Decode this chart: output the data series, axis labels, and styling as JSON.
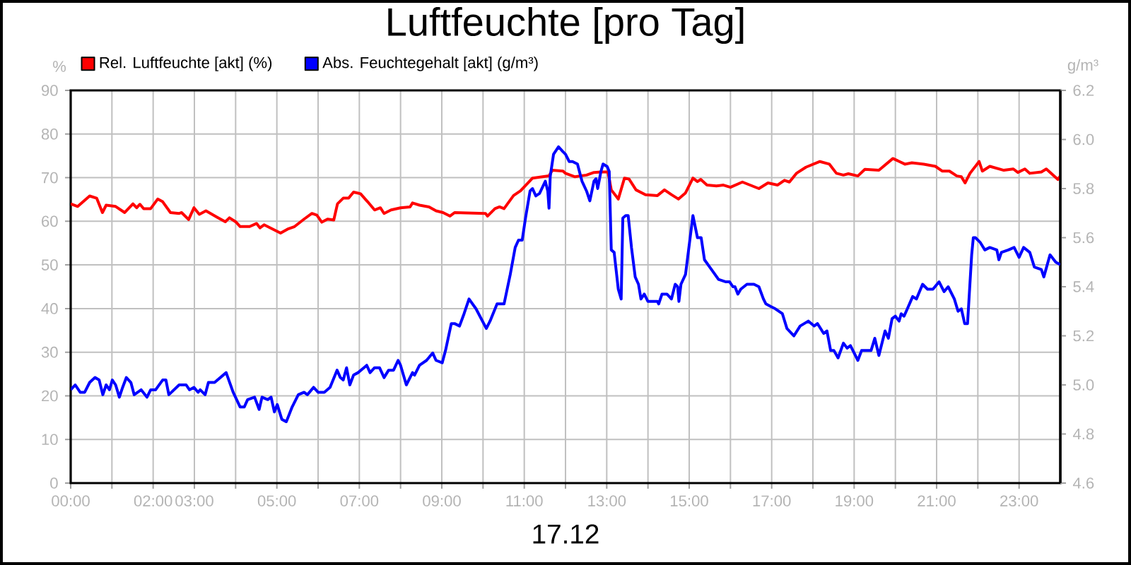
{
  "chart_data": {
    "type": "line",
    "title": "Luftfeuchte [pro Tag]",
    "xlabel": "17.12",
    "ylabel": "%",
    "y2label": "g/m³",
    "xlim": [
      0,
      24
    ],
    "xticks": [
      {
        "value": 0,
        "label": "00:00"
      },
      {
        "value": 1,
        "label": null
      },
      {
        "value": 2,
        "label": "02:00"
      },
      {
        "value": 3,
        "label": "03:00"
      },
      {
        "value": 4,
        "label": null
      },
      {
        "value": 5,
        "label": "05:00"
      },
      {
        "value": 6,
        "label": null
      },
      {
        "value": 7,
        "label": "07:00"
      },
      {
        "value": 8,
        "label": null
      },
      {
        "value": 9,
        "label": "09:00"
      },
      {
        "value": 10,
        "label": null
      },
      {
        "value": 11,
        "label": "11:00"
      },
      {
        "value": 12,
        "label": null
      },
      {
        "value": 13,
        "label": "13:00"
      },
      {
        "value": 14,
        "label": null
      },
      {
        "value": 15,
        "label": "15:00"
      },
      {
        "value": 16,
        "label": null
      },
      {
        "value": 17,
        "label": "17:00"
      },
      {
        "value": 18,
        "label": null
      },
      {
        "value": 19,
        "label": "19:00"
      },
      {
        "value": 20,
        "label": null
      },
      {
        "value": 21,
        "label": "21:00"
      },
      {
        "value": 22,
        "label": null
      },
      {
        "value": 23,
        "label": "23:00"
      }
    ],
    "ylim": [
      0,
      90
    ],
    "yticks": [
      0,
      10,
      20,
      30,
      40,
      50,
      60,
      70,
      80,
      90
    ],
    "y2lim": [
      4.6,
      6.2
    ],
    "y2ticks": [
      4.6,
      4.8,
      {
        "value": 5.0,
        "label": "5.0"
      },
      5.2,
      5.4,
      5.6,
      5.8,
      {
        "value": 6.0,
        "label": "6.0"
      },
      6.2
    ],
    "grid": true,
    "legend": "top left",
    "series": [
      {
        "name": "Rel. Luftfeuchte [akt] (%)",
        "color": "#ff0000",
        "x": [
          0,
          0.17,
          0.46,
          0.63,
          0.77,
          0.86,
          1.09,
          1.31,
          1.51,
          1.6,
          1.68,
          1.77,
          1.94,
          2.11,
          2.23,
          2.42,
          2.63,
          2.69,
          2.86,
          2.99,
          3.12,
          3.28,
          3.54,
          3.75,
          3.85,
          4.0,
          4.11,
          4.34,
          4.51,
          4.59,
          4.69,
          4.86,
          5.09,
          5.26,
          5.43,
          5.66,
          5.85,
          5.97,
          6.09,
          6.23,
          6.38,
          6.47,
          6.61,
          6.74,
          6.86,
          7.03,
          7.2,
          7.37,
          7.51,
          7.6,
          7.77,
          8.0,
          8.23,
          8.29,
          8.46,
          8.69,
          8.86,
          9.03,
          9.2,
          9.31,
          9.6,
          10.06,
          10.11,
          10.29,
          10.4,
          10.51,
          10.74,
          10.91,
          11.2,
          11.6,
          11.68,
          11.94,
          12.0,
          12.23,
          12.51,
          12.69,
          12.86,
          13.03,
          13.11,
          13.28,
          13.43,
          13.54,
          13.71,
          13.94,
          14.23,
          14.4,
          14.57,
          14.74,
          14.91,
          15.09,
          15.2,
          15.28,
          15.43,
          15.66,
          15.83,
          16.0,
          16.29,
          16.69,
          16.91,
          17.14,
          17.31,
          17.43,
          17.6,
          17.83,
          18.17,
          18.4,
          18.57,
          18.74,
          18.86,
          19.09,
          19.26,
          19.6,
          19.94,
          20.23,
          20.4,
          20.69,
          20.97,
          21.14,
          21.31,
          21.49,
          21.6,
          21.69,
          21.81,
          22.03,
          22.11,
          22.29,
          22.63,
          22.86,
          22.97,
          23.14,
          23.26,
          23.54,
          23.66,
          23.94,
          24.0
        ],
        "values": [
          64.0,
          63.4,
          65.8,
          65.3,
          62.0,
          63.7,
          63.4,
          62.0,
          64.0,
          63.1,
          63.9,
          62.9,
          62.9,
          65.1,
          64.5,
          62.0,
          61.8,
          62.0,
          60.4,
          63.1,
          61.6,
          62.4,
          61.0,
          59.9,
          60.8,
          59.9,
          58.8,
          58.8,
          59.5,
          58.5,
          59.2,
          58.4,
          57.3,
          58.2,
          58.8,
          60.5,
          61.8,
          61.4,
          59.8,
          60.5,
          60.3,
          64.0,
          65.3,
          65.3,
          66.7,
          66.3,
          64.5,
          62.6,
          63.1,
          61.8,
          62.6,
          63.1,
          63.3,
          64.2,
          63.7,
          63.3,
          62.4,
          62.0,
          61.2,
          62.0,
          61.9,
          61.8,
          61.2,
          62.9,
          63.3,
          62.9,
          65.9,
          67.0,
          69.9,
          70.4,
          71.7,
          71.5,
          71.0,
          70.2,
          70.6,
          71.2,
          71.3,
          71.3,
          67.2,
          65.1,
          69.9,
          69.7,
          67.2,
          66.1,
          65.9,
          67.2,
          66.1,
          65.1,
          66.5,
          69.9,
          69.1,
          69.6,
          68.3,
          68.1,
          68.3,
          67.8,
          69.0,
          67.5,
          68.8,
          68.3,
          69.4,
          69.0,
          71.0,
          72.4,
          73.7,
          73.1,
          71.0,
          70.6,
          70.9,
          70.4,
          71.9,
          71.7,
          74.4,
          73.1,
          73.4,
          73.1,
          72.6,
          71.5,
          71.5,
          70.4,
          70.2,
          68.8,
          71.0,
          73.7,
          71.5,
          72.6,
          71.7,
          72.0,
          71.2,
          72.0,
          71.0,
          71.3,
          72.0,
          69.6,
          70.4
        ]
      },
      {
        "name": "Abs. Feuchtegehalt [akt] (g/m³)",
        "color": "#0000ff",
        "axis": "y2",
        "x": [
          0,
          0.11,
          0.23,
          0.34,
          0.46,
          0.59,
          0.69,
          0.78,
          0.86,
          0.94,
          1.01,
          1.09,
          1.18,
          1.26,
          1.35,
          1.46,
          1.54,
          1.71,
          1.85,
          1.94,
          2.06,
          2.23,
          2.31,
          2.38,
          2.63,
          2.8,
          2.88,
          2.99,
          3.09,
          3.14,
          3.26,
          3.34,
          3.49,
          3.77,
          3.94,
          4.11,
          4.21,
          4.29,
          4.46,
          4.57,
          4.64,
          4.78,
          4.86,
          4.94,
          5.01,
          5.12,
          5.23,
          5.37,
          5.52,
          5.66,
          5.74,
          5.89,
          6.0,
          6.15,
          6.29,
          6.46,
          6.54,
          6.61,
          6.69,
          6.77,
          6.86,
          6.97,
          7.11,
          7.18,
          7.26,
          7.37,
          7.49,
          7.6,
          7.71,
          7.83,
          7.94,
          8.0,
          8.14,
          8.29,
          8.34,
          8.46,
          8.63,
          8.78,
          8.86,
          9.01,
          9.09,
          9.23,
          9.31,
          9.43,
          9.54,
          9.66,
          9.83,
          10.08,
          10.17,
          10.34,
          10.51,
          10.66,
          10.78,
          10.86,
          10.95,
          11.03,
          11.14,
          11.2,
          11.28,
          11.37,
          11.51,
          11.57,
          11.6,
          11.63,
          11.71,
          11.83,
          11.94,
          12.0,
          12.09,
          12.17,
          12.29,
          12.4,
          12.51,
          12.59,
          12.69,
          12.74,
          12.78,
          12.86,
          12.91,
          13.01,
          13.06,
          13.11,
          13.18,
          13.28,
          13.35,
          13.39,
          13.46,
          13.52,
          13.6,
          13.69,
          13.77,
          13.83,
          13.91,
          14.0,
          14.23,
          14.26,
          14.34,
          14.46,
          14.57,
          14.66,
          14.72,
          14.75,
          14.8,
          14.91,
          15.09,
          15.2,
          15.29,
          15.37,
          15.54,
          15.71,
          15.89,
          15.98,
          16.06,
          16.11,
          16.18,
          16.25,
          16.4,
          16.57,
          16.69,
          16.8,
          16.86,
          16.97,
          17.09,
          17.26,
          17.37,
          17.54,
          17.69,
          17.89,
          18.03,
          18.11,
          18.26,
          18.34,
          18.43,
          18.51,
          18.61,
          18.74,
          18.83,
          18.91,
          19.09,
          19.18,
          19.41,
          19.5,
          19.6,
          19.75,
          19.83,
          19.92,
          20.0,
          20.09,
          20.14,
          20.21,
          20.29,
          20.42,
          20.51,
          20.66,
          20.78,
          20.91,
          21.06,
          21.18,
          21.28,
          21.43,
          21.52,
          21.6,
          21.68,
          21.75,
          21.85,
          21.89,
          21.94,
          22.06,
          22.17,
          22.29,
          22.46,
          22.51,
          22.57,
          22.74,
          22.88,
          23.0,
          23.11,
          23.26,
          23.37,
          23.54,
          23.6,
          23.75,
          23.89,
          24.0
        ],
        "values": [
          4.98,
          5.0,
          4.97,
          4.97,
          5.01,
          5.03,
          5.02,
          4.96,
          5.0,
          4.98,
          5.02,
          5.0,
          4.95,
          4.99,
          5.03,
          5.01,
          4.96,
          4.98,
          4.95,
          4.98,
          4.98,
          5.02,
          5.02,
          4.96,
          5.0,
          5.0,
          4.98,
          4.99,
          4.97,
          4.98,
          4.96,
          5.01,
          5.01,
          5.05,
          4.97,
          4.91,
          4.91,
          4.94,
          4.95,
          4.9,
          4.95,
          4.94,
          4.95,
          4.89,
          4.92,
          4.86,
          4.85,
          4.91,
          4.96,
          4.97,
          4.96,
          4.99,
          4.97,
          4.97,
          4.99,
          5.06,
          5.03,
          5.02,
          5.07,
          5.0,
          5.04,
          5.05,
          5.07,
          5.08,
          5.05,
          5.07,
          5.07,
          5.03,
          5.06,
          5.06,
          5.1,
          5.08,
          5.0,
          5.05,
          5.04,
          5.08,
          5.1,
          5.13,
          5.1,
          5.09,
          5.14,
          5.25,
          5.25,
          5.24,
          5.29,
          5.35,
          5.31,
          5.23,
          5.26,
          5.33,
          5.33,
          5.45,
          5.56,
          5.59,
          5.59,
          5.68,
          5.79,
          5.8,
          5.77,
          5.78,
          5.83,
          5.79,
          5.72,
          5.85,
          5.94,
          5.97,
          5.95,
          5.94,
          5.91,
          5.91,
          5.9,
          5.83,
          5.79,
          5.75,
          5.83,
          5.84,
          5.8,
          5.87,
          5.9,
          5.89,
          5.87,
          5.55,
          5.54,
          5.39,
          5.35,
          5.68,
          5.69,
          5.69,
          5.56,
          5.44,
          5.41,
          5.35,
          5.37,
          5.34,
          5.34,
          5.33,
          5.37,
          5.37,
          5.35,
          5.41,
          5.4,
          5.34,
          5.41,
          5.45,
          5.69,
          5.6,
          5.6,
          5.51,
          5.47,
          5.43,
          5.42,
          5.42,
          5.4,
          5.4,
          5.37,
          5.39,
          5.41,
          5.41,
          5.4,
          5.35,
          5.33,
          5.32,
          5.31,
          5.29,
          5.23,
          5.2,
          5.24,
          5.26,
          5.24,
          5.25,
          5.21,
          5.22,
          5.14,
          5.14,
          5.11,
          5.17,
          5.15,
          5.16,
          5.1,
          5.14,
          5.14,
          5.19,
          5.12,
          5.22,
          5.19,
          5.27,
          5.28,
          5.26,
          5.29,
          5.28,
          5.31,
          5.36,
          5.35,
          5.41,
          5.39,
          5.39,
          5.42,
          5.38,
          5.4,
          5.35,
          5.3,
          5.31,
          5.25,
          5.25,
          5.53,
          5.6,
          5.6,
          5.58,
          5.55,
          5.56,
          5.55,
          5.51,
          5.54,
          5.55,
          5.56,
          5.52,
          5.56,
          5.54,
          5.48,
          5.47,
          5.44,
          5.53,
          5.5,
          5.49
        ]
      }
    ]
  }
}
